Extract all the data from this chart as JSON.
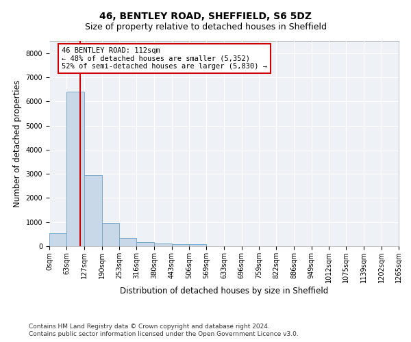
{
  "title": "46, BENTLEY ROAD, SHEFFIELD, S6 5DZ",
  "subtitle": "Size of property relative to detached houses in Sheffield",
  "xlabel": "Distribution of detached houses by size in Sheffield",
  "ylabel": "Number of detached properties",
  "bin_edges": [
    0,
    63,
    127,
    190,
    253,
    316,
    380,
    443,
    506,
    569,
    633,
    696,
    759,
    822,
    886,
    949,
    1012,
    1075,
    1139,
    1202,
    1265
  ],
  "bar_heights": [
    550,
    6400,
    2950,
    975,
    330,
    160,
    125,
    80,
    80,
    0,
    0,
    0,
    0,
    0,
    0,
    0,
    0,
    0,
    0,
    0
  ],
  "bar_color": "#c8d8e8",
  "bar_edge_color": "#7aaac8",
  "property_line_x": 112,
  "property_line_color": "#cc0000",
  "annotation_line1": "46 BENTLEY ROAD: 112sqm",
  "annotation_line2": "← 48% of detached houses are smaller (5,352)",
  "annotation_line3": "52% of semi-detached houses are larger (5,830) →",
  "annotation_box_color": "#cc0000",
  "ylim": [
    0,
    8500
  ],
  "yticks": [
    0,
    1000,
    2000,
    3000,
    4000,
    5000,
    6000,
    7000,
    8000
  ],
  "footnote1": "Contains HM Land Registry data © Crown copyright and database right 2024.",
  "footnote2": "Contains public sector information licensed under the Open Government Licence v3.0.",
  "bg_color": "#eef2f7",
  "title_fontsize": 10,
  "subtitle_fontsize": 9,
  "label_fontsize": 8.5,
  "tick_fontsize": 7,
  "footnote_fontsize": 6.5
}
